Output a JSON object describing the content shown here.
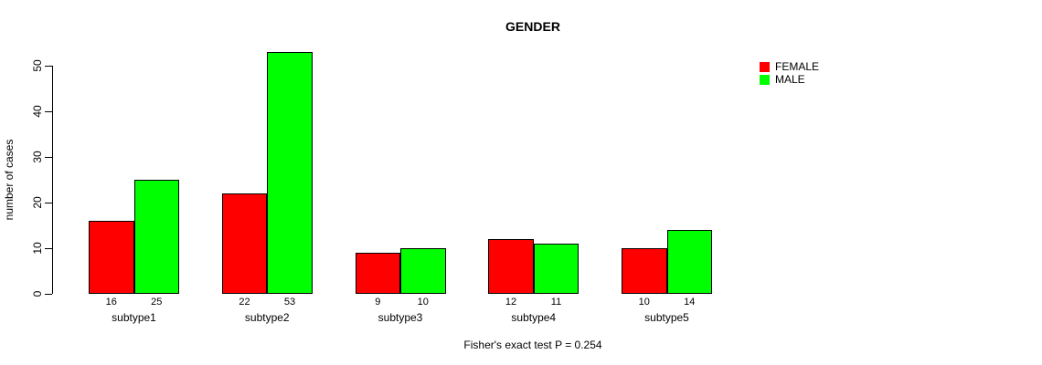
{
  "chart_data": {
    "type": "bar",
    "title": "GENDER",
    "xlabel": "",
    "ylabel": "number of cases",
    "categories": [
      "subtype1",
      "subtype2",
      "subtype3",
      "subtype4",
      "subtype5"
    ],
    "series": [
      {
        "name": "FEMALE",
        "color": "#ff0000",
        "values": [
          16,
          22,
          9,
          12,
          10
        ]
      },
      {
        "name": "MALE",
        "color": "#00ff00",
        "values": [
          25,
          53,
          10,
          11,
          14
        ]
      }
    ],
    "bar_value_labels": [
      [
        16,
        25
      ],
      [
        22,
        53
      ],
      [
        9,
        10
      ],
      [
        12,
        11
      ],
      [
        10,
        14
      ]
    ],
    "yticks": [
      0,
      10,
      20,
      30,
      40,
      50
    ],
    "ylim": [
      0,
      50
    ],
    "grid": false,
    "legend_position": "right",
    "bar_border_color": "#000000",
    "caption": "Fisher's exact test P = 0.254"
  }
}
